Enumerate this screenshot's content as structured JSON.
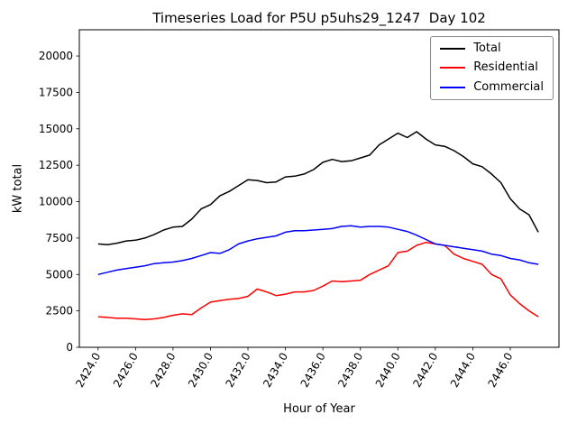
{
  "chart_data": {
    "type": "line",
    "title": "Timeseries Load for P5U p5uhs29_1247  Day 102",
    "xlabel": "Hour of Year",
    "ylabel": "kW total",
    "xlim": [
      2423.0,
      2448.6
    ],
    "ylim": [
      0,
      21800
    ],
    "grid": false,
    "legend_position": "upper right",
    "xticks": [
      2424,
      2426,
      2428,
      2430,
      2432,
      2434,
      2436,
      2438,
      2440,
      2442,
      2444,
      2446
    ],
    "xtick_labels": [
      "2424.0",
      "2426.0",
      "2428.0",
      "2430.0",
      "2432.0",
      "2434.0",
      "2436.0",
      "2438.0",
      "2440.0",
      "2442.0",
      "2444.0",
      "2446.0"
    ],
    "yticks": [
      0,
      2500,
      5000,
      7500,
      10000,
      12500,
      15000,
      17500,
      20000
    ],
    "ytick_labels": [
      "0",
      "2500",
      "5000",
      "7500",
      "10000",
      "12500",
      "15000",
      "17500",
      "20000"
    ],
    "x": [
      2424.0,
      2424.5,
      2425.0,
      2425.5,
      2426.0,
      2426.5,
      2427.0,
      2427.5,
      2428.0,
      2428.5,
      2429.0,
      2429.5,
      2430.0,
      2430.5,
      2431.0,
      2431.5,
      2432.0,
      2432.5,
      2433.0,
      2433.5,
      2434.0,
      2434.5,
      2435.0,
      2435.5,
      2436.0,
      2436.5,
      2437.0,
      2437.5,
      2438.0,
      2438.5,
      2439.0,
      2439.5,
      2440.0,
      2440.5,
      2441.0,
      2441.5,
      2442.0,
      2442.5,
      2443.0,
      2443.5,
      2444.0,
      2444.5,
      2445.0,
      2445.5,
      2446.0,
      2446.5,
      2447.0,
      2447.5
    ],
    "series": [
      {
        "name": "Total",
        "color": "#000000",
        "values": [
          7100,
          7050,
          7150,
          7300,
          7350,
          7500,
          7750,
          8050,
          8250,
          8300,
          8800,
          9500,
          9800,
          10400,
          10700,
          11100,
          11500,
          11450,
          11300,
          11350,
          11700,
          11750,
          11900,
          12200,
          12700,
          12900,
          12750,
          12800,
          13000,
          13200,
          13900,
          14300,
          14700,
          14400,
          14800,
          14300,
          13900,
          13800,
          13500,
          13100,
          12600,
          12400,
          11900,
          11300,
          10200,
          9500,
          9100,
          7900
        ]
      },
      {
        "name": "Residential",
        "color": "#ff0000",
        "values": [
          2100,
          2050,
          2000,
          2000,
          1950,
          1900,
          1950,
          2050,
          2200,
          2300,
          2250,
          2700,
          3100,
          3200,
          3300,
          3350,
          3500,
          4000,
          3800,
          3550,
          3650,
          3800,
          3800,
          3900,
          4200,
          4550,
          4500,
          4550,
          4600,
          5000,
          5300,
          5600,
          6500,
          6600,
          7000,
          7200,
          7100,
          7000,
          6400,
          6100,
          5900,
          5700,
          5000,
          4700,
          3600,
          3000,
          2500,
          2100
        ]
      },
      {
        "name": "Commercial",
        "color": "#0000ff",
        "values": [
          5000,
          5150,
          5300,
          5400,
          5500,
          5600,
          5750,
          5800,
          5850,
          5950,
          6100,
          6300,
          6500,
          6450,
          6700,
          7100,
          7300,
          7450,
          7550,
          7650,
          7900,
          8000,
          8000,
          8050,
          8100,
          8150,
          8300,
          8350,
          8250,
          8300,
          8300,
          8250,
          8100,
          7950,
          7700,
          7400,
          7100,
          7000,
          6900,
          6800,
          6700,
          6600,
          6400,
          6300,
          6100,
          6000,
          5800,
          5700
        ]
      }
    ]
  }
}
